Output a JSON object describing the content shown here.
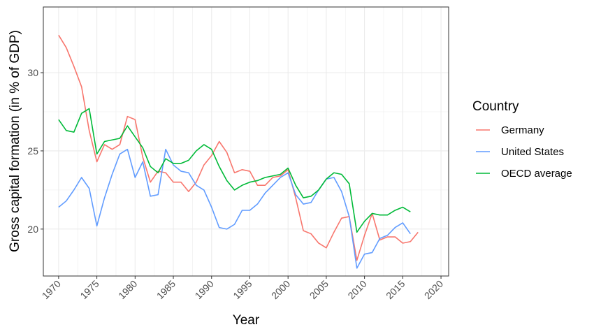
{
  "chart_data": {
    "type": "line",
    "xlabel": "Year",
    "ylabel": "Gross capital formation (in % of GDP)",
    "xlim": [
      1968,
      2021
    ],
    "ylim": [
      17,
      34.2
    ],
    "x_ticks": [
      1970,
      1975,
      1980,
      1985,
      1990,
      1995,
      2000,
      2005,
      2010,
      2015,
      2020
    ],
    "x_tick_labels": [
      "1970",
      "1975",
      "1980",
      "1985",
      "1990",
      "1995",
      "2000",
      "2005",
      "2010",
      "2015",
      "2020"
    ],
    "y_ticks": [
      20,
      25,
      30
    ],
    "y_tick_labels": [
      "20",
      "25",
      "30"
    ],
    "grid": true,
    "legend": {
      "title": "Country",
      "position": "right"
    },
    "series": [
      {
        "name": "Germany",
        "color": "#F8766D",
        "x": [
          1970,
          1971,
          1972,
          1973,
          1974,
          1975,
          1976,
          1977,
          1978,
          1979,
          1980,
          1981,
          1982,
          1983,
          1984,
          1985,
          1986,
          1987,
          1988,
          1989,
          1990,
          1991,
          1992,
          1993,
          1994,
          1995,
          1996,
          1997,
          1998,
          1999,
          2000,
          2001,
          2002,
          2003,
          2004,
          2005,
          2006,
          2007,
          2008,
          2009,
          2010,
          2011,
          2012,
          2013,
          2014,
          2015,
          2016,
          2017
        ],
        "values": [
          32.4,
          31.6,
          30.4,
          29.1,
          26.3,
          24.3,
          25.4,
          25.1,
          25.4,
          27.2,
          27.0,
          24.6,
          23.0,
          23.7,
          23.6,
          23.0,
          23.0,
          22.4,
          23.0,
          24.1,
          24.7,
          25.6,
          24.9,
          23.6,
          23.8,
          23.7,
          22.8,
          22.8,
          23.3,
          23.4,
          23.8,
          22.0,
          19.9,
          19.7,
          19.1,
          18.8,
          19.8,
          20.7,
          20.8,
          18.0,
          19.6,
          21.0,
          19.3,
          19.5,
          19.5,
          19.1,
          19.2,
          19.8
        ]
      },
      {
        "name": "United States",
        "color": "#619CFF",
        "x": [
          1970,
          1971,
          1972,
          1973,
          1974,
          1975,
          1976,
          1977,
          1978,
          1979,
          1980,
          1981,
          1982,
          1983,
          1984,
          1985,
          1986,
          1987,
          1988,
          1989,
          1990,
          1991,
          1992,
          1993,
          1994,
          1995,
          1996,
          1997,
          1998,
          1999,
          2000,
          2001,
          2002,
          2003,
          2004,
          2005,
          2006,
          2007,
          2008,
          2009,
          2010,
          2011,
          2012,
          2013,
          2014,
          2015,
          2016
        ],
        "values": [
          21.4,
          21.8,
          22.5,
          23.3,
          22.6,
          20.2,
          22.0,
          23.5,
          24.8,
          25.1,
          23.3,
          24.3,
          22.1,
          22.2,
          25.1,
          24.1,
          23.7,
          23.6,
          22.8,
          22.5,
          21.4,
          20.1,
          20.0,
          20.3,
          21.2,
          21.2,
          21.6,
          22.3,
          22.8,
          23.3,
          23.6,
          22.2,
          21.6,
          21.7,
          22.5,
          23.2,
          23.3,
          22.4,
          20.8,
          17.5,
          18.4,
          18.5,
          19.4,
          19.6,
          20.1,
          20.4,
          19.7
        ]
      },
      {
        "name": "OECD average",
        "color": "#00BA38",
        "x": [
          1970,
          1971,
          1972,
          1973,
          1974,
          1975,
          1976,
          1977,
          1978,
          1979,
          1980,
          1981,
          1982,
          1983,
          1984,
          1985,
          1986,
          1987,
          1988,
          1989,
          1990,
          1991,
          1992,
          1993,
          1994,
          1995,
          1996,
          1997,
          1998,
          1999,
          2000,
          2001,
          2002,
          2003,
          2004,
          2005,
          2006,
          2007,
          2008,
          2009,
          2010,
          2011,
          2012,
          2013,
          2014,
          2015,
          2016
        ],
        "values": [
          27.0,
          26.3,
          26.2,
          27.4,
          27.7,
          24.8,
          25.6,
          25.7,
          25.8,
          26.6,
          25.9,
          25.2,
          24.0,
          23.6,
          24.5,
          24.2,
          24.2,
          24.4,
          25.0,
          25.4,
          25.1,
          24.0,
          23.1,
          22.5,
          22.8,
          23.0,
          23.1,
          23.3,
          23.4,
          23.5,
          23.9,
          22.8,
          22.0,
          22.1,
          22.5,
          23.2,
          23.6,
          23.5,
          22.9,
          19.8,
          20.5,
          21.0,
          20.9,
          20.9,
          21.2,
          21.4,
          21.1
        ]
      }
    ]
  }
}
